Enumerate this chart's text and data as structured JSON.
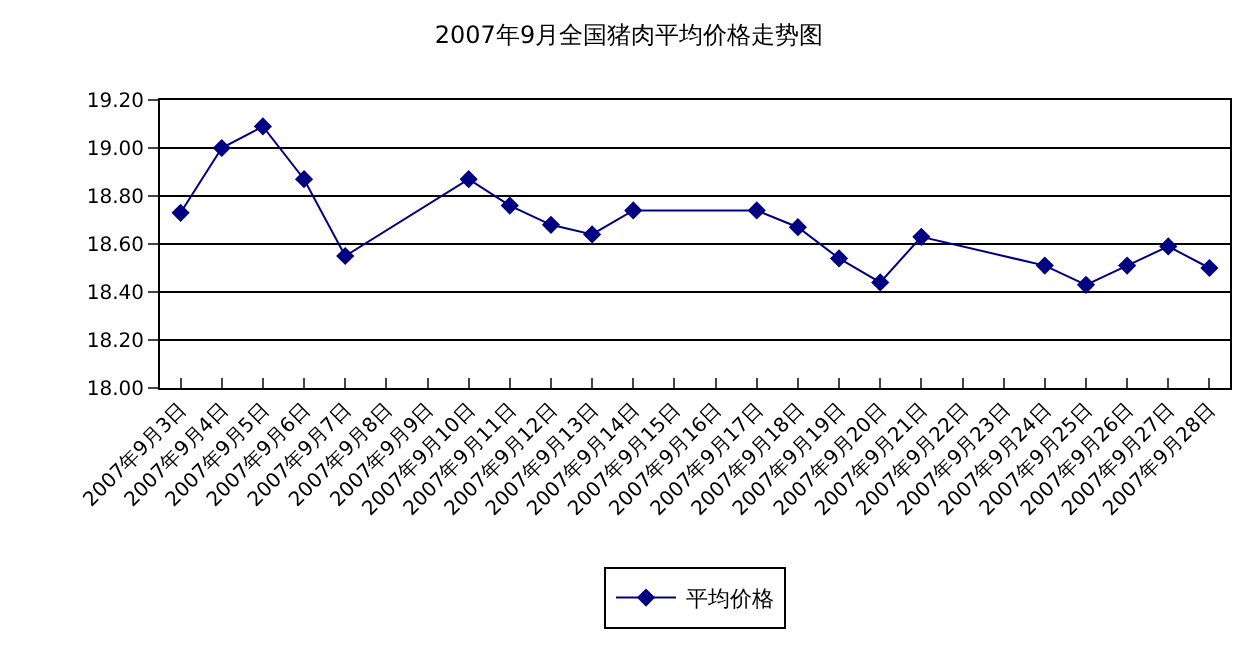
{
  "chart_data": {
    "type": "line",
    "title": "2007年9月全国猪肉平均价格走势图",
    "categories": [
      "2007年9月3日",
      "2007年9月4日",
      "2007年9月5日",
      "2007年9月6日",
      "2007年9月7日",
      "2007年9月8日",
      "2007年9月9日",
      "2007年9月10日",
      "2007年9月11日",
      "2007年9月12日",
      "2007年9月13日",
      "2007年9月14日",
      "2007年9月15日",
      "2007年9月16日",
      "2007年9月17日",
      "2007年9月18日",
      "2007年9月19日",
      "2007年9月20日",
      "2007年9月21日",
      "2007年9月22日",
      "2007年9月23日",
      "2007年9月24日",
      "2007年9月25日",
      "2007年9月26日",
      "2007年9月27日",
      "2007年9月28日"
    ],
    "series": [
      {
        "name": "平均价格",
        "color": "#000080",
        "values": [
          18.73,
          19.0,
          19.09,
          18.87,
          18.55,
          null,
          null,
          18.87,
          18.76,
          18.68,
          18.64,
          18.74,
          null,
          null,
          18.74,
          18.67,
          18.54,
          18.44,
          18.63,
          null,
          null,
          18.51,
          18.43,
          18.51,
          18.59,
          18.5
        ]
      }
    ],
    "ylim": [
      18.0,
      19.2
    ],
    "yticks": [
      {
        "value": 18.0,
        "label": "18.00"
      },
      {
        "value": 18.2,
        "label": "18.20"
      },
      {
        "value": 18.4,
        "label": "18.40"
      },
      {
        "value": 18.6,
        "label": "18.60"
      },
      {
        "value": 18.8,
        "label": "18.80"
      },
      {
        "value": 19.0,
        "label": "19.00"
      },
      {
        "value": 19.2,
        "label": "19.20"
      }
    ],
    "grid": "y",
    "legend": "bottom",
    "marker": "diamond",
    "line_style": "solid"
  }
}
